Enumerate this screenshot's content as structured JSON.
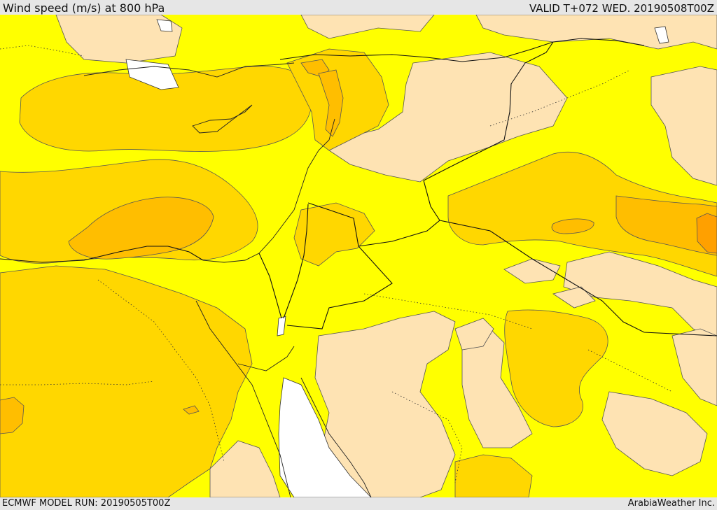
{
  "header": {
    "title": "Wind speed (m/s) at 800 hPa",
    "valid": "VALID T+072 WED. 20190508T00Z"
  },
  "footer": {
    "model_run": "ECMWF MODEL RUN: 20190505T00Z",
    "credit": "ArabiaWeather Inc."
  },
  "colors": {
    "background": "#e6e6e6",
    "low_wind": "#fee3b3",
    "moderate_wind": "#ffff00",
    "fresh_wind": "#ffd700",
    "strong_wind": "#ffbe00",
    "very_strong_wind": "#ffa000",
    "no_data": "#ffffff",
    "contour": "#555555",
    "border": "#111111"
  }
}
